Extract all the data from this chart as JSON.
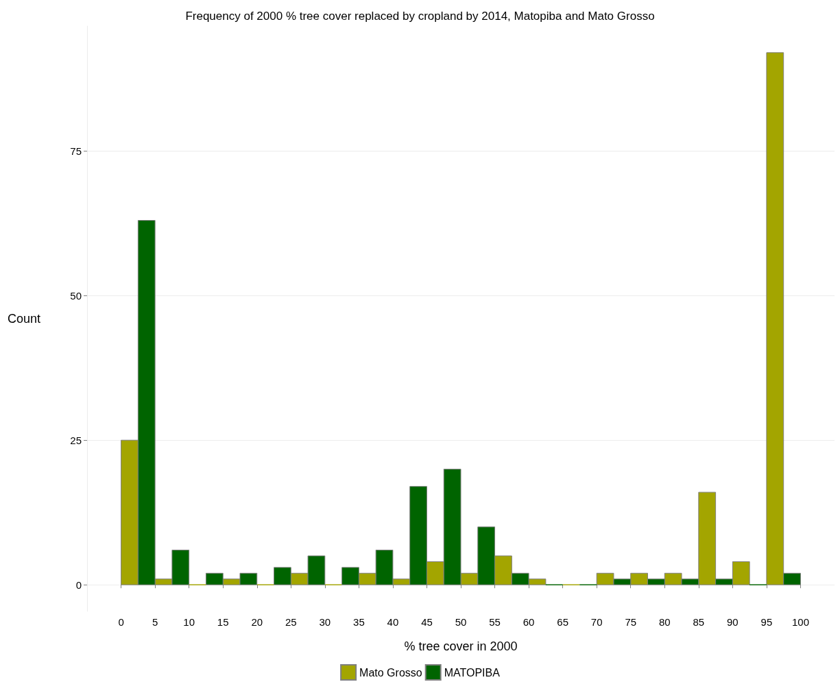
{
  "chart_data": {
    "type": "histogram",
    "title": "Frequency of 2000 % tree cover replaced by cropland by 2014, Matopiba and Mato Grosso",
    "xlabel": "% tree cover in 2000",
    "ylabel": "Count",
    "bins": [
      0,
      5,
      10,
      15,
      20,
      25,
      30,
      35,
      40,
      45,
      50,
      55,
      60,
      65,
      70,
      75,
      80,
      85,
      90,
      95,
      100
    ],
    "series": [
      {
        "name": "Mato Grosso",
        "color": "#a3a500",
        "values": [
          25,
          1,
          0,
          1,
          0,
          2,
          0,
          2,
          1,
          4,
          2,
          5,
          1,
          0,
          2,
          2,
          2,
          16,
          4,
          92
        ]
      },
      {
        "name": "MATOPIBA",
        "color": "#006400",
        "values": [
          63,
          6,
          2,
          2,
          3,
          5,
          3,
          6,
          17,
          20,
          10,
          2,
          0,
          0,
          1,
          1,
          1,
          1,
          0,
          2
        ]
      }
    ],
    "xlim": [
      -5,
      105
    ],
    "xticks": [
      0,
      5,
      10,
      15,
      20,
      25,
      30,
      35,
      40,
      45,
      50,
      55,
      60,
      65,
      70,
      75,
      80,
      85,
      90,
      95,
      100
    ],
    "ylim": [
      -4.6,
      96.6
    ],
    "yticks": [
      0,
      25,
      50,
      75
    ],
    "grid": "y",
    "legend": "bottom"
  }
}
